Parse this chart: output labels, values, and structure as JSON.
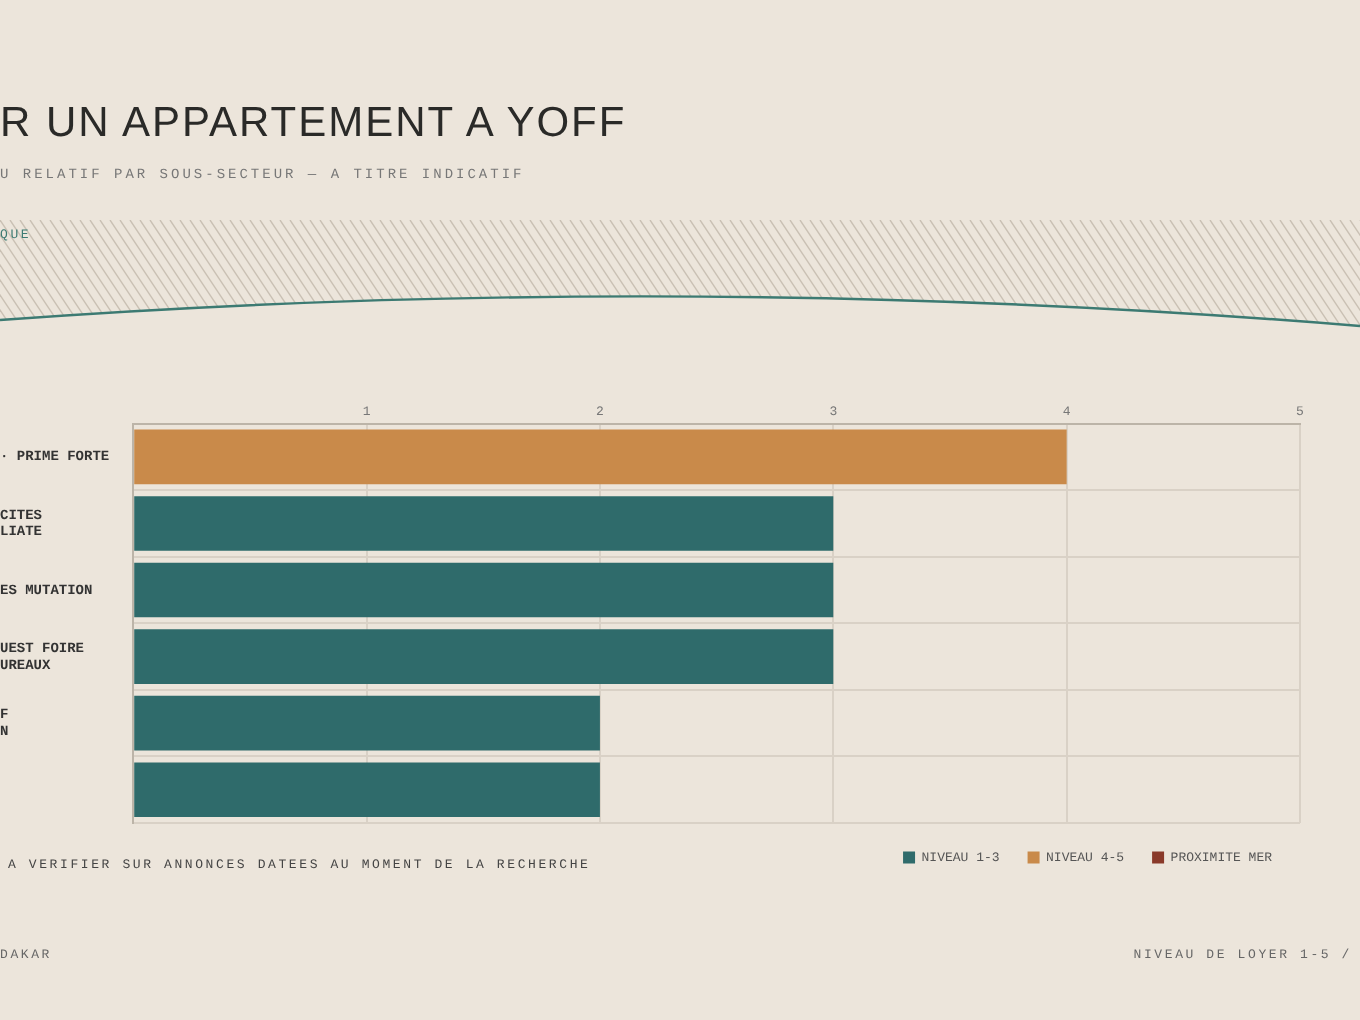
{
  "chart_data": {
    "type": "bar",
    "orientation": "horizontal",
    "stacked": true,
    "title": "R UN APPARTEMENT A YOFF",
    "subtitle": "U RELATIF PAR SOUS-SECTEUR — A TITRE INDICATIF",
    "categories": [
      "· PRIME FORTE",
      "CITES\nLIATE",
      "ES MUTATION",
      "UEST FOIRE\nUREAUX",
      "F\nN",
      null
    ],
    "series": [
      {
        "name": "NIVEAU 1-3",
        "color": "#2f6b6b",
        "values": [
          null,
          3,
          3,
          3,
          2,
          2
        ]
      },
      {
        "name": "NIVEAU 4-5",
        "color": "#c98a4a",
        "values": [
          4,
          null,
          null,
          null,
          null,
          null
        ]
      },
      {
        "name": "PROXIMITE MER",
        "color": "#8a3a2a",
        "values": [
          null,
          null,
          null,
          null,
          null,
          null
        ]
      }
    ],
    "xlim": [
      0,
      5
    ],
    "xticks": [
      {
        "value": 0,
        "label": null
      },
      1,
      2,
      3,
      4,
      5
    ],
    "grid": true,
    "legend": "bottom right",
    "annotations": [
      "QUE",
      "A VERIFIER SUR ANNONCES DATEES AU MOMENT DE LA RECHERCHE",
      "DAKAR",
      "NIVEAU DE LOYER 1-5 /"
    ]
  }
}
